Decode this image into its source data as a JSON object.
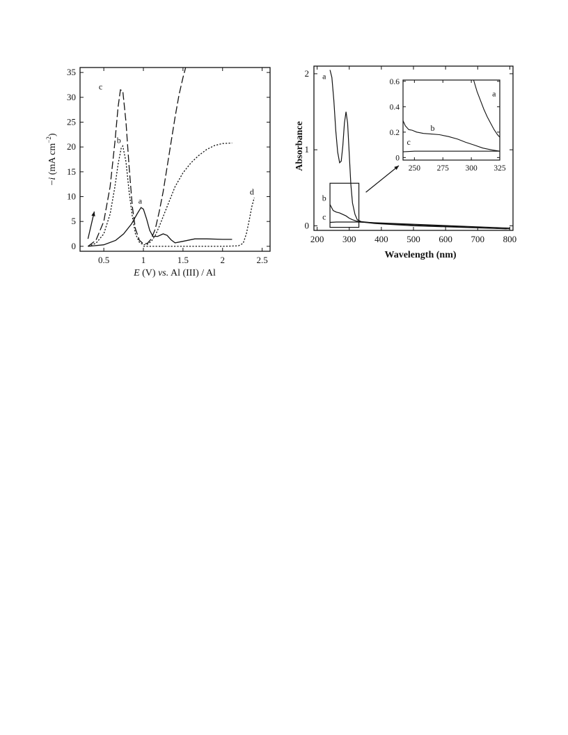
{
  "chart_data": [
    {
      "type": "line",
      "xlabel_parts": {
        "E": "E",
        "rest": " (V) ",
        "vs": "vs.",
        "tail": " Al (III) / Al"
      },
      "ylabel_parts": {
        "prefix": "−",
        "i": "i",
        "unit": " (mA cm",
        "exp": "−2",
        "close": ")"
      },
      "xlim": [
        0.2,
        2.6
      ],
      "ylim": [
        -1,
        36
      ],
      "xticks": [
        0.5,
        1,
        1.5,
        2,
        2.5
      ],
      "xtick_labels": [
        "0.5",
        "1",
        "1.5",
        "2",
        "2.5"
      ],
      "yticks": [
        0,
        5,
        10,
        15,
        20,
        25,
        30,
        35
      ],
      "ytick_labels": [
        "0",
        "5",
        "10",
        "15",
        "20",
        "25",
        "30",
        "35"
      ],
      "grid": false,
      "series": [
        {
          "name": "a",
          "style": "solid",
          "x": [
            0.3,
            0.5,
            0.65,
            0.75,
            0.85,
            0.92,
            0.97,
            1.0,
            1.04,
            1.08,
            1.12,
            1.18,
            1.25,
            1.3,
            1.35,
            1.4,
            1.5,
            1.65,
            1.8,
            2.0,
            2.12
          ],
          "y": [
            0,
            0.3,
            1.2,
            2.5,
            4.5,
            6.5,
            7.8,
            7.5,
            5.5,
            3.2,
            2,
            2,
            2.5,
            2.2,
            1.3,
            0.7,
            1,
            1.5,
            1.5,
            1.4,
            1.4
          ]
        },
        {
          "name": "b",
          "style": "dotted",
          "x": [
            0.3,
            0.4,
            0.5,
            0.58,
            0.64,
            0.68,
            0.72,
            0.74,
            0.78,
            0.82,
            0.86,
            0.9,
            0.95,
            1.0,
            1.05,
            1.1,
            1.15,
            1.2,
            1.3,
            1.4,
            1.5,
            1.6,
            1.7,
            1.8,
            1.9,
            2.0,
            2.12
          ],
          "y": [
            0,
            0.6,
            2.5,
            6.5,
            12,
            16.5,
            19.8,
            20.2,
            17,
            11,
            6,
            2.5,
            0.8,
            0.3,
            0.4,
            1,
            2.2,
            4,
            8,
            12,
            14.8,
            16.8,
            18.3,
            19.5,
            20.3,
            20.7,
            20.8
          ]
        },
        {
          "name": "c",
          "style": "dashed",
          "x": [
            0.3,
            0.4,
            0.5,
            0.58,
            0.64,
            0.68,
            0.71,
            0.74,
            0.78,
            0.82,
            0.86,
            0.9,
            0.95,
            1.0,
            1.05,
            1.1,
            1.15,
            1.2,
            1.25,
            1.3,
            1.35,
            1.4,
            1.45,
            1.5,
            1.55
          ],
          "y": [
            0,
            1.2,
            5,
            12,
            21,
            28,
            31.5,
            31.3,
            25,
            16,
            8,
            3.5,
            1.2,
            0.5,
            0.6,
            1.5,
            3.5,
            7,
            11,
            16,
            21,
            26,
            30.5,
            34,
            37
          ]
        },
        {
          "name": "d",
          "style": "dotted",
          "x": [
            1.0,
            1.2,
            1.6,
            2.0,
            2.2,
            2.26,
            2.3,
            2.34,
            2.37,
            2.4
          ],
          "y": [
            0,
            0,
            0,
            0,
            0.1,
            0.6,
            2.5,
            5.5,
            8,
            9.8
          ]
        }
      ],
      "annotations": [
        {
          "text": "a",
          "x": 0.96,
          "y": 8.6
        },
        {
          "text": "b",
          "x": 0.69,
          "y": 20.8
        },
        {
          "text": "c",
          "x": 0.46,
          "y": 31.6
        },
        {
          "text": "d",
          "x": 2.37,
          "y": 10.4
        }
      ],
      "arrow": {
        "from": [
          0.3,
          1.5
        ],
        "to": [
          0.38,
          7
        ]
      }
    },
    {
      "type": "line",
      "xlabel": "Wavelength (nm)",
      "ylabel": "Absorbance",
      "xlim": [
        190,
        810
      ],
      "ylim": [
        -0.06,
        2.1
      ],
      "xticks": [
        200,
        300,
        400,
        500,
        600,
        700,
        800
      ],
      "xtick_labels": [
        "200",
        "300",
        "400",
        "500",
        "600",
        "700",
        "800"
      ],
      "yticks": [
        0,
        1,
        2
      ],
      "ytick_labels": [
        "0",
        "1",
        "2"
      ],
      "grid": false,
      "series": [
        {
          "name": "a",
          "x": [
            240,
            246,
            252,
            258,
            264,
            270,
            275,
            280,
            285,
            290,
            295,
            300,
            305,
            310,
            318,
            325,
            340,
            380,
            500,
            650,
            790
          ],
          "y": [
            2.05,
            1.95,
            1.65,
            1.25,
            0.97,
            0.83,
            0.85,
            1.05,
            1.35,
            1.5,
            1.35,
            0.95,
            0.55,
            0.3,
            0.15,
            0.08,
            0.05,
            0.03,
            0.0,
            -0.02,
            -0.04
          ]
        },
        {
          "name": "b",
          "x": [
            240,
            250,
            260,
            270,
            280,
            290,
            300,
            310,
            320,
            325,
            400,
            800
          ],
          "y": [
            0.28,
            0.2,
            0.18,
            0.17,
            0.15,
            0.13,
            0.1,
            0.08,
            0.065,
            0.06,
            0.03,
            -0.04
          ]
        },
        {
          "name": "c",
          "x": [
            240,
            260,
            280,
            300,
            320,
            325,
            800
          ],
          "y": [
            0.045,
            0.05,
            0.05,
            0.05,
            0.05,
            0.05,
            -0.03
          ]
        }
      ],
      "annotations": [
        {
          "text": "a",
          "x": 222,
          "y": 1.93
        },
        {
          "text": "b",
          "x": 222,
          "y": 0.33
        },
        {
          "text": "c",
          "x": 222,
          "y": 0.08
        }
      ],
      "zoom_box": {
        "x": [
          240,
          330
        ],
        "y": [
          -0.02,
          0.56
        ]
      },
      "inset": {
        "xlim": [
          240,
          325
        ],
        "ylim": [
          -0.02,
          0.61
        ],
        "xticks": [
          250,
          275,
          300,
          325
        ],
        "xtick_labels": [
          "250",
          "275",
          "300",
          "325"
        ],
        "yticks": [
          0,
          0.2,
          0.4,
          0.6
        ],
        "ytick_labels": [
          "0",
          "0.2",
          "0.4",
          "0.6"
        ],
        "series": [
          {
            "name": "a",
            "x": [
              302,
              305,
              308,
              311,
              314,
              317,
              320,
              323,
              325
            ],
            "y": [
              0.61,
              0.52,
              0.45,
              0.38,
              0.32,
              0.27,
              0.22,
              0.18,
              0.16
            ]
          },
          {
            "name": "b",
            "x": [
              240,
              242,
              245,
              248,
              252,
              258,
              265,
              272,
              280,
              288,
              295,
              302,
              310,
              318,
              325
            ],
            "y": [
              0.29,
              0.25,
              0.22,
              0.215,
              0.2,
              0.19,
              0.185,
              0.18,
              0.165,
              0.145,
              0.12,
              0.1,
              0.075,
              0.06,
              0.05
            ]
          },
          {
            "name": "c",
            "x": [
              240,
              250,
              270,
              290,
              310,
              325
            ],
            "y": [
              0.045,
              0.05,
              0.05,
              0.05,
              0.05,
              0.05
            ]
          }
        ],
        "annotations": [
          {
            "text": "a",
            "x": 320,
            "y": 0.48
          },
          {
            "text": "b",
            "x": 266,
            "y": 0.21
          },
          {
            "text": "c",
            "x": 245,
            "y": 0.1
          }
        ]
      }
    }
  ]
}
